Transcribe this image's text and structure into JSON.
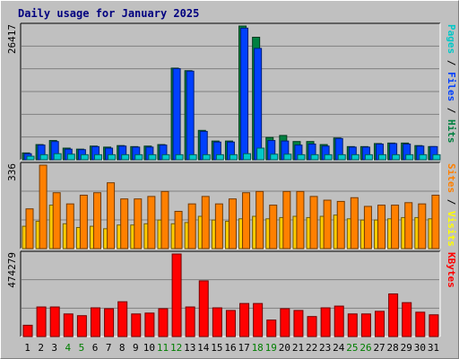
{
  "chart_data": {
    "type": "bar",
    "title": "Daily usage for January 2025",
    "categories": [
      "1",
      "2",
      "3",
      "4",
      "5",
      "6",
      "7",
      "8",
      "9",
      "10",
      "11",
      "12",
      "13",
      "14",
      "15",
      "16",
      "17",
      "18",
      "19",
      "20",
      "21",
      "22",
      "23",
      "24",
      "25",
      "26",
      "27",
      "28",
      "29",
      "30",
      "31"
    ],
    "weekend_days": [
      "4",
      "5",
      "11",
      "12",
      "18",
      "19",
      "25",
      "26"
    ],
    "weekend_color": "#007f00",
    "panels": [
      {
        "name": "hits-files-pages",
        "ymax_label": "26417",
        "ylim": [
          0,
          26417
        ],
        "legend": [
          {
            "text": "Pages",
            "color": "#00c8c8"
          },
          {
            "text": " / ",
            "color": "#000000"
          },
          {
            "text": "Files",
            "color": "#0040ff"
          },
          {
            "text": " / ",
            "color": "#000000"
          },
          {
            "text": "Hits",
            "color": "#008040"
          }
        ],
        "series": [
          {
            "name": "Hits",
            "color": "#008040",
            "values": [
              1350,
              3000,
              3800,
              2300,
              2100,
              2700,
              2500,
              2800,
              2600,
              2700,
              3000,
              18100,
              17600,
              5800,
              3700,
              3700,
              26417,
              24200,
              4400,
              4800,
              3600,
              3600,
              3000,
              4300,
              2600,
              2600,
              3200,
              3300,
              3300,
              2800,
              2600
            ]
          },
          {
            "name": "Files",
            "color": "#0040ff",
            "values": [
              1200,
              2900,
              3600,
              2100,
              2000,
              2600,
              2300,
              2700,
              2500,
              2500,
              2900,
              18000,
              17500,
              5600,
              3500,
              3500,
              26000,
              22000,
              3800,
              3700,
              2900,
              3100,
              2700,
              4200,
              2500,
              2500,
              3100,
              3200,
              3100,
              2700,
              2600
            ]
          },
          {
            "name": "Pages",
            "color": "#00c8c8",
            "values": [
              700,
              1000,
              1200,
              1100,
              1000,
              1000,
              1000,
              1000,
              1000,
              1000,
              1000,
              1000,
              1000,
              1000,
              1000,
              1000,
              1200,
              2300,
              1100,
              1100,
              1000,
              1000,
              1000,
              1000,
              1000,
              1000,
              1000,
              1000,
              1000,
              1000,
              1000
            ]
          }
        ]
      },
      {
        "name": "visits-sites",
        "ymax_label": "336",
        "ylim": [
          0,
          336
        ],
        "legend": [
          {
            "text": "Sites",
            "color": "#ff8000"
          },
          {
            "text": " / ",
            "color": "#000000"
          },
          {
            "text": "Visits",
            "color": "#ffff00"
          }
        ],
        "series": [
          {
            "name": "Visits",
            "color": "#ffcc00",
            "values": [
              90,
              110,
              175,
              100,
              85,
              90,
              80,
              95,
              95,
              100,
              115,
              100,
              105,
              130,
              115,
              110,
              120,
              130,
              120,
              125,
              130,
              125,
              130,
              135,
              120,
              115,
              115,
              120,
              125,
              125,
              120
            ]
          },
          {
            "name": "Sites",
            "color": "#ff8000",
            "values": [
              160,
              336,
              225,
              180,
              215,
              225,
              265,
              200,
              200,
              210,
              230,
              150,
              180,
              210,
              180,
              200,
              225,
              230,
              175,
              230,
              230,
              210,
              195,
              190,
              205,
              170,
              175,
              175,
              185,
              180,
              215
            ]
          }
        ]
      },
      {
        "name": "kbytes",
        "ymax_label": "474279",
        "ylim": [
          0,
          474279
        ],
        "legend": [
          {
            "text": "KBytes",
            "color": "#ff0000"
          }
        ],
        "series": [
          {
            "name": "KBytes",
            "color": "#ff0000",
            "values": [
              65000,
              170000,
              170000,
              130000,
              120000,
              165000,
              160000,
              200000,
              130000,
              135000,
              160000,
              474279,
              170000,
              320000,
              165000,
              150000,
              190000,
              190000,
              95000,
              160000,
              150000,
              115000,
              165000,
              175000,
              130000,
              130000,
              145000,
              245000,
              195000,
              140000,
              125000
            ]
          }
        ]
      }
    ]
  }
}
